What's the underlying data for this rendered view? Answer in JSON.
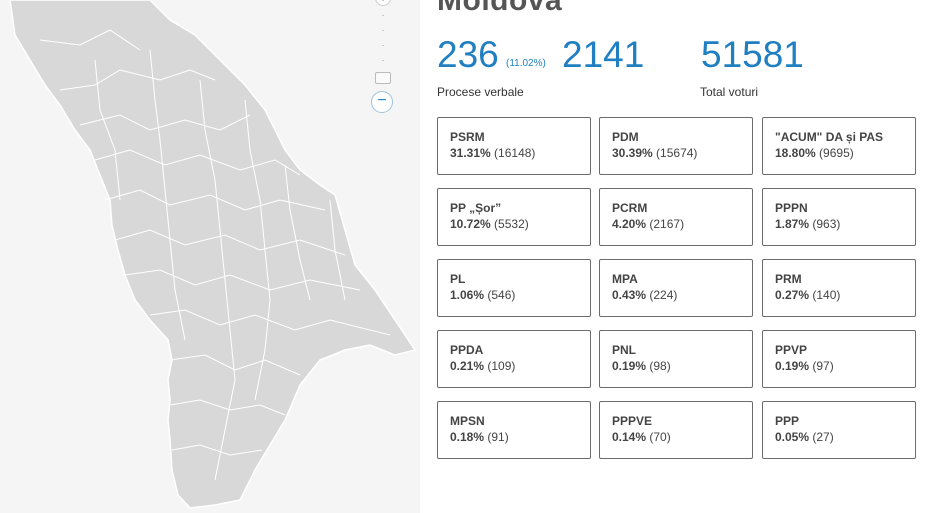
{
  "header": {
    "title": "Moldova"
  },
  "stats": {
    "processed": "236",
    "processed_pct": "(11.02%)",
    "total_pv": "2141",
    "total_votes": "51581",
    "label_pv": "Procese verbale",
    "label_votes": "Total voturi"
  },
  "map": {
    "zoom_out_label": "−",
    "region_fill": "#d8d8d8",
    "region_stroke": "#ffffff"
  },
  "colors": {
    "accent": "#1f7fc0",
    "card_border": "#6b6b6b"
  },
  "parties": [
    {
      "name": "PSRM",
      "pct": "31.31%",
      "votes": "(16148)"
    },
    {
      "name": "PDM",
      "pct": "30.39%",
      "votes": "(15674)"
    },
    {
      "name": "\"ACUM\" DA și PAS",
      "pct": "18.80%",
      "votes": "(9695)"
    },
    {
      "name": "PP „Șor”",
      "pct": "10.72%",
      "votes": "(5532)"
    },
    {
      "name": "PCRM",
      "pct": "4.20%",
      "votes": "(2167)"
    },
    {
      "name": "PPPN",
      "pct": "1.87%",
      "votes": "(963)"
    },
    {
      "name": "PL",
      "pct": "1.06%",
      "votes": "(546)"
    },
    {
      "name": "MPA",
      "pct": "0.43%",
      "votes": "(224)"
    },
    {
      "name": "PRM",
      "pct": "0.27%",
      "votes": "(140)"
    },
    {
      "name": "PPDA",
      "pct": "0.21%",
      "votes": "(109)"
    },
    {
      "name": "PNL",
      "pct": "0.19%",
      "votes": "(98)"
    },
    {
      "name": "PPVP",
      "pct": "0.19%",
      "votes": "(97)"
    },
    {
      "name": "MPSN",
      "pct": "0.18%",
      "votes": "(91)"
    },
    {
      "name": "PPPVE",
      "pct": "0.14%",
      "votes": "(70)"
    },
    {
      "name": "PPP",
      "pct": "0.05%",
      "votes": "(27)"
    }
  ]
}
